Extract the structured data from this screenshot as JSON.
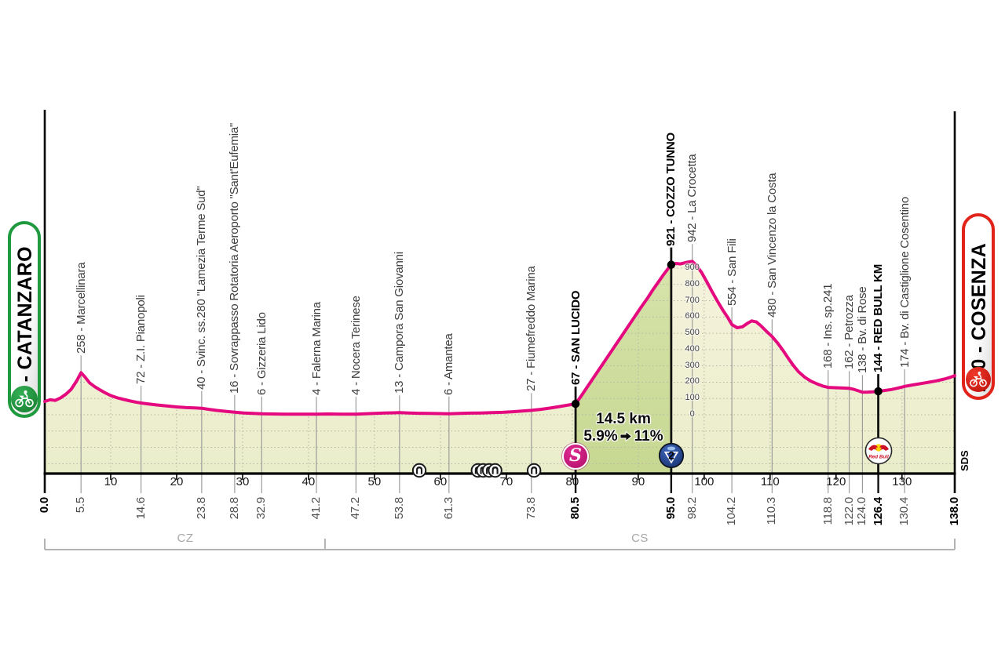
{
  "route": {
    "start": {
      "label": "82 - CATANZARO",
      "badge_color": "#1f9a3e"
    },
    "finish": {
      "label": "240 - COSENZA",
      "badge_color": "#e2231a"
    }
  },
  "climb": {
    "length": "14.5 km",
    "gradient_avg": "5.9%",
    "gradient_max": "11%"
  },
  "icons": {
    "sprint": {
      "label": "S",
      "km": 80.5,
      "name": "intermediate-sprint"
    },
    "gpm": {
      "label": "2",
      "km": 95.0,
      "name": "category-2-climb"
    },
    "redbull": {
      "label": "Red Bull",
      "km": 126.4,
      "name": "red-bull-km"
    }
  },
  "provinces": [
    {
      "label": "CZ",
      "from_km": 0,
      "to_km": 42.5
    },
    {
      "label": "CS",
      "from_km": 42.5,
      "to_km": 138
    }
  ],
  "sds_credit": "SDS",
  "colors": {
    "pink": "#e5097f",
    "base_fill_top": "#f7f4df",
    "base_fill_bottom": "#eaedca",
    "climb_fill_top": "#d7e3ab",
    "climb_fill_bottom": "#c7d892",
    "grid": "#b5b5a5",
    "waypoint_line": "#9c9c9c",
    "gpm_blue": "#1c3f8f",
    "sprint_magenta": "#c9197f",
    "badge_green": "#1f9a3e",
    "badge_red": "#e2231a"
  },
  "chart_data": {
    "type": "area",
    "x_unit": "km",
    "y_unit": "m",
    "xlim": [
      0,
      138
    ],
    "ylim": [
      -300,
      1000
    ],
    "axis_ticks_km": [
      10,
      20,
      30,
      40,
      50,
      60,
      70,
      80,
      90,
      100,
      110,
      120,
      130
    ],
    "elevation_scale": {
      "at_km": 98.2,
      "values": [
        0,
        100,
        200,
        300,
        400,
        500,
        600,
        700,
        800,
        900
      ]
    },
    "profile": [
      [
        0,
        82
      ],
      [
        0.8,
        92
      ],
      [
        1.6,
        88
      ],
      [
        2.4,
        104
      ],
      [
        3.2,
        126
      ],
      [
        4,
        156
      ],
      [
        4.8,
        205
      ],
      [
        5.5,
        258
      ],
      [
        6.1,
        232
      ],
      [
        6.8,
        196
      ],
      [
        7.6,
        172
      ],
      [
        8.4,
        152
      ],
      [
        9.2,
        134
      ],
      [
        10,
        118
      ],
      [
        11,
        104
      ],
      [
        12,
        94
      ],
      [
        13,
        84
      ],
      [
        14,
        76
      ],
      [
        14.6,
        72
      ],
      [
        15.6,
        67
      ],
      [
        17,
        60
      ],
      [
        18.5,
        54
      ],
      [
        20,
        48
      ],
      [
        21.5,
        44
      ],
      [
        22.7,
        42
      ],
      [
        23.8,
        40
      ],
      [
        24.9,
        33
      ],
      [
        26,
        27
      ],
      [
        27.4,
        21
      ],
      [
        28.8,
        16
      ],
      [
        30.2,
        11
      ],
      [
        31.6,
        8
      ],
      [
        32.9,
        6
      ],
      [
        34.5,
        5
      ],
      [
        36.5,
        4
      ],
      [
        38.5,
        4
      ],
      [
        41.2,
        4
      ],
      [
        43,
        5
      ],
      [
        45.1,
        4
      ],
      [
        47.2,
        4
      ],
      [
        48.6,
        6
      ],
      [
        50.1,
        8
      ],
      [
        51.6,
        11
      ],
      [
        53,
        12
      ],
      [
        53.8,
        13
      ],
      [
        55.2,
        11
      ],
      [
        56.6,
        9
      ],
      [
        58.2,
        8
      ],
      [
        59.8,
        7
      ],
      [
        61.3,
        6
      ],
      [
        63,
        8
      ],
      [
        64.6,
        10
      ],
      [
        66.2,
        11
      ],
      [
        67.8,
        13
      ],
      [
        69.4,
        15
      ],
      [
        71,
        19
      ],
      [
        72.4,
        23
      ],
      [
        73.8,
        27
      ],
      [
        75.2,
        33
      ],
      [
        76.6,
        41
      ],
      [
        78,
        50
      ],
      [
        79.2,
        58
      ],
      [
        80.5,
        67
      ],
      [
        81.4,
        118
      ],
      [
        82.4,
        178
      ],
      [
        83.4,
        238
      ],
      [
        84.4,
        298
      ],
      [
        85.4,
        358
      ],
      [
        86.4,
        418
      ],
      [
        87.4,
        478
      ],
      [
        88.4,
        538
      ],
      [
        89.4,
        598
      ],
      [
        90.4,
        658
      ],
      [
        91.4,
        715
      ],
      [
        92.2,
        765
      ],
      [
        93,
        812
      ],
      [
        93.8,
        858
      ],
      [
        94.4,
        890
      ],
      [
        95,
        921
      ],
      [
        95.7,
        929
      ],
      [
        96.4,
        926
      ],
      [
        97.2,
        934
      ],
      [
        98.2,
        942
      ],
      [
        98.8,
        918
      ],
      [
        99.6,
        874
      ],
      [
        100.4,
        816
      ],
      [
        101.2,
        756
      ],
      [
        102,
        698
      ],
      [
        102.8,
        644
      ],
      [
        103.6,
        596
      ],
      [
        104.2,
        554
      ],
      [
        105,
        534
      ],
      [
        105.8,
        540
      ],
      [
        106.6,
        562
      ],
      [
        107.2,
        576
      ],
      [
        107.9,
        570
      ],
      [
        108.6,
        546
      ],
      [
        109.4,
        514
      ],
      [
        110.3,
        480
      ],
      [
        111.1,
        442
      ],
      [
        111.9,
        398
      ],
      [
        112.7,
        350
      ],
      [
        113.5,
        304
      ],
      [
        114.3,
        264
      ],
      [
        115.2,
        232
      ],
      [
        116.2,
        206
      ],
      [
        117.2,
        188
      ],
      [
        118,
        176
      ],
      [
        118.8,
        168
      ],
      [
        119.9,
        166
      ],
      [
        121,
        164
      ],
      [
        122,
        162
      ],
      [
        122.7,
        156
      ],
      [
        123.4,
        147
      ],
      [
        124,
        138
      ],
      [
        124.8,
        139
      ],
      [
        125.6,
        141
      ],
      [
        126.4,
        144
      ],
      [
        127.4,
        149
      ],
      [
        128.4,
        155
      ],
      [
        129.4,
        164
      ],
      [
        130.4,
        174
      ],
      [
        131.6,
        183
      ],
      [
        132.8,
        191
      ],
      [
        134,
        199
      ],
      [
        135.2,
        208
      ],
      [
        136.4,
        219
      ],
      [
        137.2,
        228
      ],
      [
        138,
        240
      ]
    ],
    "climb_highlight_km": [
      80.5,
      95.0
    ],
    "waypoints": [
      {
        "km": 5.5,
        "m": 258,
        "label": "258 - Marcellinara",
        "bold": false
      },
      {
        "km": 14.6,
        "m": 72,
        "label": "72 - Z.I. Pianopoli",
        "bold": false
      },
      {
        "km": 23.8,
        "m": 40,
        "label": "40 - Svinc. ss.280 \"Lamezia Terme Sud\"",
        "bold": false
      },
      {
        "km": 28.8,
        "m": 16,
        "label": "16 - Sovrappasso Rotatoria Aeroporto \"Sant'Eufemia\"",
        "bold": false
      },
      {
        "km": 32.9,
        "m": 6,
        "label": "6 - Gizzeria Lido",
        "bold": false
      },
      {
        "km": 41.2,
        "m": 4,
        "label": "4 - Falerna Marina",
        "bold": false
      },
      {
        "km": 47.2,
        "m": 4,
        "label": "4 - Nocera Terinese",
        "bold": false
      },
      {
        "km": 53.8,
        "m": 13,
        "label": "13 - Campora San Giovanni",
        "bold": false
      },
      {
        "km": 61.3,
        "m": 6,
        "label": "6 - Amantea",
        "bold": false
      },
      {
        "km": 73.8,
        "m": 27,
        "label": "27 - Fiumefreddo Marina",
        "bold": false
      },
      {
        "km": 80.5,
        "m": 67,
        "label": "67 - SAN LUCIDO",
        "bold": true,
        "dot": true
      },
      {
        "km": 95.0,
        "m": 921,
        "label": "921 - COZZO TUNNO",
        "bold": true,
        "dot": true
      },
      {
        "km": 98.2,
        "m": 942,
        "label": "942 - La Crocetta",
        "bold": false
      },
      {
        "km": 104.2,
        "m": 554,
        "label": "554 - San Fili",
        "bold": false
      },
      {
        "km": 110.3,
        "m": 480,
        "label": "480 - San Vincenzo la Costa",
        "bold": false
      },
      {
        "km": 118.8,
        "m": 168,
        "label": "168 - Ins. sp.241",
        "bold": false
      },
      {
        "km": 122.0,
        "m": 162,
        "label": "162 - Petrozza",
        "bold": false
      },
      {
        "km": 124.0,
        "m": 138,
        "label": "138 - Bv. di Rose",
        "bold": false
      },
      {
        "km": 126.4,
        "m": 144,
        "label": "144 - RED BULL KM",
        "bold": true,
        "dot": true
      },
      {
        "km": 130.4,
        "m": 174,
        "label": "174 - Bv. di Castiglione Cosentino",
        "bold": false
      }
    ],
    "km_labels": [
      {
        "km": 0.0,
        "text": "0.0",
        "bold": true
      },
      {
        "km": 5.5,
        "text": "5.5",
        "bold": false
      },
      {
        "km": 14.6,
        "text": "14.6",
        "bold": false
      },
      {
        "km": 23.8,
        "text": "23.8",
        "bold": false
      },
      {
        "km": 28.8,
        "text": "28.8",
        "bold": false
      },
      {
        "km": 32.9,
        "text": "32.9",
        "bold": false
      },
      {
        "km": 41.2,
        "text": "41.2",
        "bold": false
      },
      {
        "km": 47.2,
        "text": "47.2",
        "bold": false
      },
      {
        "km": 53.8,
        "text": "53.8",
        "bold": false
      },
      {
        "km": 61.3,
        "text": "61.3",
        "bold": false
      },
      {
        "km": 73.8,
        "text": "73.8",
        "bold": false
      },
      {
        "km": 80.5,
        "text": "80.5",
        "bold": true
      },
      {
        "km": 95.0,
        "text": "95.0",
        "bold": true
      },
      {
        "km": 98.2,
        "text": "98.2",
        "bold": false
      },
      {
        "km": 104.2,
        "text": "104.2",
        "bold": false
      },
      {
        "km": 110.3,
        "text": "110.3",
        "bold": false
      },
      {
        "km": 118.8,
        "text": "118.8",
        "bold": false
      },
      {
        "km": 122.0,
        "text": "122.0",
        "bold": false
      },
      {
        "km": 124.0,
        "text": "124.0",
        "bold": false
      },
      {
        "km": 126.4,
        "text": "126.4",
        "bold": true
      },
      {
        "km": 130.4,
        "text": "130.4",
        "bold": false
      },
      {
        "km": 138.0,
        "text": "138.0",
        "bold": true
      }
    ],
    "tunnels_km": [
      56.8,
      65.7,
      66.5,
      67.4,
      68.3,
      74.2
    ]
  }
}
